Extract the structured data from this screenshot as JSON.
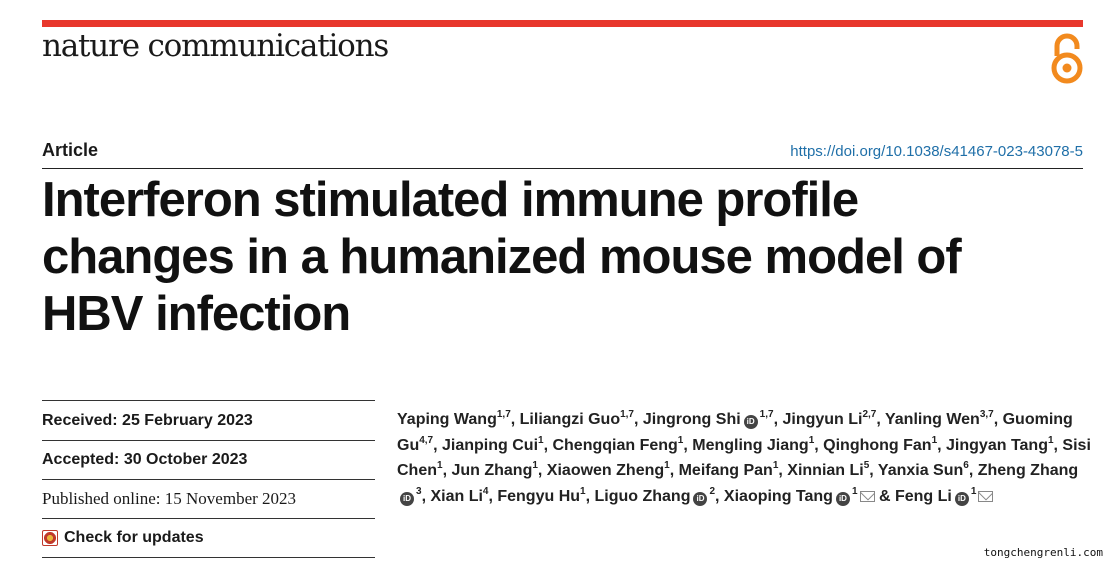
{
  "journal": "nature communications",
  "article_type": "Article",
  "doi": "https://doi.org/10.1038/s41467-023-43078-5",
  "title_lines": [
    "Interferon stimulated immune profile",
    "changes in a humanized mouse model of",
    "HBV infection"
  ],
  "meta": {
    "received_label": "Received:",
    "received_date": "25 February 2023",
    "accepted_label": "Accepted:",
    "accepted_date": "30 October 2023",
    "published": "Published online: 15 November 2023",
    "check_updates": "Check for updates"
  },
  "authors": [
    {
      "name": "Yaping Wang",
      "aff": "1,7"
    },
    {
      "name": "Liliangzi Guo",
      "aff": "1,7"
    },
    {
      "name": "Jingrong Shi",
      "orcid": true,
      "aff": "1,7"
    },
    {
      "name": "Jingyun Li",
      "aff": "2,7"
    },
    {
      "name": "Yanling Wen",
      "aff": "3,7"
    },
    {
      "name": "Guoming Gu",
      "aff": "4,7"
    },
    {
      "name": "Jianping Cui",
      "aff": "1"
    },
    {
      "name": "Chengqian Feng",
      "aff": "1"
    },
    {
      "name": "Mengling Jiang",
      "aff": "1"
    },
    {
      "name": "Qinghong Fan",
      "aff": "1"
    },
    {
      "name": "Jingyan Tang",
      "aff": "1"
    },
    {
      "name": "Sisi Chen",
      "aff": "1"
    },
    {
      "name": "Jun Zhang",
      "aff": "1"
    },
    {
      "name": "Xiaowen Zheng",
      "aff": "1"
    },
    {
      "name": "Meifang Pan",
      "aff": "1"
    },
    {
      "name": "Xinnian Li",
      "aff": "5"
    },
    {
      "name": "Yanxia Sun",
      "aff": "6"
    },
    {
      "name": "Zheng Zhang",
      "orcid": true,
      "aff": "3"
    },
    {
      "name": "Xian Li",
      "aff": "4"
    },
    {
      "name": "Fengyu Hu",
      "aff": "1"
    },
    {
      "name": "Liguo Zhang",
      "orcid": true,
      "aff": "2"
    },
    {
      "name": "Xiaoping Tang",
      "orcid": true,
      "aff": "1",
      "mail": true
    },
    {
      "name": "Feng Li",
      "orcid": true,
      "aff": "1",
      "mail": true
    }
  ],
  "author_separator": ", ",
  "author_last_separator": " & ",
  "watermark": "tongchengrenli.com"
}
